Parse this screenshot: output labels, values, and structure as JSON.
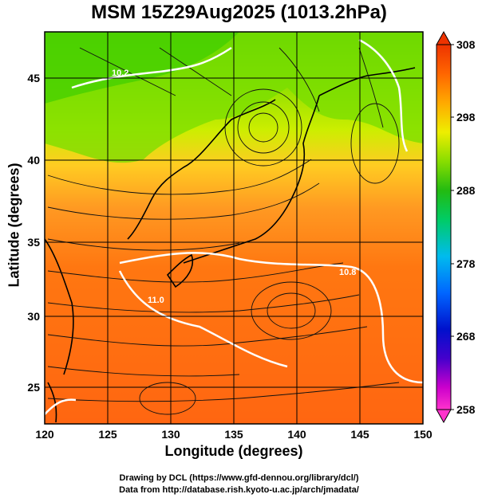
{
  "title": "MSM 15Z29Aug2025 (1013.2hPa)",
  "map": {
    "xlabel": "Longitude (degrees)",
    "ylabel": "Latitude  (degrees)",
    "lon_range": [
      120,
      150
    ],
    "lat_range": [
      22.4,
      47.6
    ],
    "lon_ticks": [
      "120",
      "125",
      "130",
      "135",
      "140",
      "145",
      "150"
    ],
    "lat_ticks": [
      "25",
      "30",
      "35",
      "40",
      "45"
    ],
    "isotherm_labels": [
      "10.2",
      "10.8",
      "11.0"
    ],
    "credits": [
      "Drawing by DCL (https://www.gfd-dennou.org/library/dcl/)",
      "Data from http://database.rish.kyoto-u.ac.jp/arch/jmadata/"
    ]
  },
  "colorbar": {
    "ticks": [
      "308",
      "298",
      "288",
      "278",
      "268",
      "258"
    ],
    "range": [
      258,
      308
    ],
    "colors": [
      "#ff33cc",
      "#cc00cc",
      "#6600cc",
      "#0000cc",
      "#0044ff",
      "#0099ff",
      "#00ccee",
      "#00cc99",
      "#00bb33",
      "#33cc00",
      "#88dd00",
      "#ccee00",
      "#ffee00",
      "#ffcc00",
      "#ff9900",
      "#ff6600",
      "#ff3300",
      "#ee2200"
    ]
  }
}
